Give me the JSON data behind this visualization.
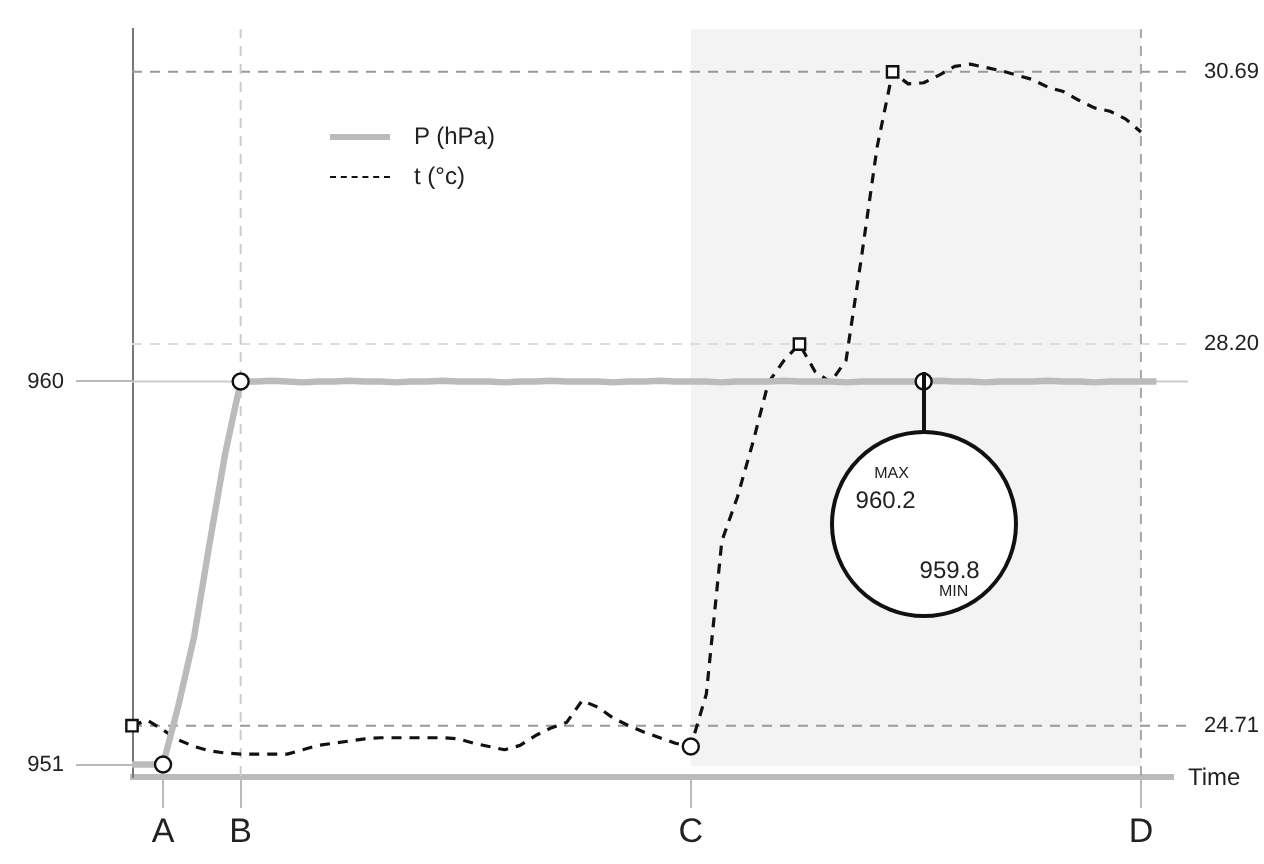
{
  "chart_data": {
    "type": "line",
    "xlabel": "Time",
    "legend": "top left",
    "marker": "none",
    "categories": [
      null,
      null,
      "A",
      null,
      null,
      null,
      null,
      "B",
      null,
      null,
      null,
      null,
      null,
      null,
      null,
      null,
      null,
      null,
      null,
      null,
      null,
      null,
      null,
      null,
      null,
      null,
      null,
      null,
      null,
      null,
      null,
      null,
      null,
      null,
      null,
      null,
      "C",
      null,
      null,
      null,
      null,
      null,
      null,
      null,
      null,
      null,
      null,
      null,
      null,
      null,
      null,
      null,
      null,
      null,
      null,
      null,
      null,
      null,
      null,
      null,
      null,
      null,
      null,
      null,
      null,
      "D",
      null,
      null
    ],
    "ylim": [
      950.73,
      968.28
    ],
    "yticks": [
      951,
      960
    ],
    "y2lim": [
      24.25,
      31.08
    ],
    "y2ticks": [
      24.71,
      {
        "value": 28.2,
        "label": "28.20"
      },
      30.69
    ],
    "series": [
      {
        "name": "P (hPa)",
        "color": "#bbbbbb",
        "line_style": "solid",
        "values": [
          951,
          951,
          951,
          952.4,
          954.0,
          956.2,
          958.3,
          960,
          960,
          960.02,
          960,
          959.98,
          960,
          960,
          960.02,
          960,
          960,
          959.98,
          960,
          960,
          960.02,
          960,
          960,
          960,
          959.98,
          960,
          960,
          960.02,
          960,
          960,
          960,
          959.98,
          960,
          960,
          960.02,
          960,
          960,
          960,
          959.98,
          960,
          960,
          960,
          960.02,
          960,
          960,
          960,
          959.98,
          960,
          960,
          960,
          960,
          960,
          960.02,
          960,
          960,
          959.98,
          960,
          960,
          960,
          960.02,
          960,
          960,
          959.98,
          960,
          960,
          960,
          960,
          null
        ]
      },
      {
        "name": "t (°c)",
        "axis": "y2",
        "color": "#111111",
        "line_style": "dashed",
        "values": [
          24.71,
          24.76,
          24.67,
          24.58,
          24.52,
          24.48,
          24.46,
          24.45,
          24.45,
          24.45,
          24.45,
          24.49,
          24.53,
          24.55,
          24.57,
          24.59,
          24.6,
          24.6,
          24.6,
          24.6,
          24.6,
          24.59,
          24.55,
          24.52,
          24.49,
          24.53,
          24.62,
          24.69,
          24.74,
          24.94,
          24.88,
          24.78,
          24.71,
          24.65,
          24.6,
          24.55,
          24.52,
          25.0,
          26.4,
          26.8,
          27.3,
          27.85,
          28.05,
          28.2,
          27.95,
          27.85,
          28.05,
          29.0,
          30.0,
          30.69,
          30.58,
          30.59,
          30.66,
          30.74,
          30.76,
          30.73,
          30.7,
          30.66,
          30.62,
          30.55,
          30.51,
          30.43,
          30.36,
          30.33,
          30.26,
          30.14,
          null,
          null
        ]
      },
      {
        "type": "scatter",
        "marker": "square",
        "axis": "y2",
        "color": "#111111",
        "values": [
          24.71,
          null,
          null,
          null,
          null,
          null,
          null,
          null,
          null,
          null,
          null,
          null,
          null,
          null,
          null,
          null,
          null,
          null,
          null,
          null,
          null,
          null,
          null,
          null,
          null,
          null,
          null,
          null,
          null,
          null,
          null,
          null,
          null,
          null,
          null,
          null,
          null,
          null,
          null,
          null,
          null,
          null,
          null,
          28.2,
          null,
          null,
          null,
          null,
          null,
          30.69,
          null,
          null,
          null,
          null,
          null,
          null,
          null,
          null,
          null,
          null,
          null,
          null,
          null,
          null,
          null,
          null,
          null,
          null
        ]
      },
      {
        "type": "scatter",
        "marker": "circle",
        "axis": "y2",
        "color": "#111111",
        "values": [
          null,
          null,
          null,
          null,
          null,
          null,
          null,
          null,
          null,
          null,
          null,
          null,
          null,
          null,
          null,
          null,
          null,
          null,
          null,
          null,
          null,
          null,
          null,
          null,
          null,
          null,
          null,
          null,
          null,
          null,
          null,
          null,
          null,
          null,
          null,
          null,
          24.52,
          null,
          null,
          null,
          null,
          null,
          null,
          null,
          null,
          null,
          null,
          null,
          null,
          null,
          null,
          null,
          null,
          null,
          null,
          null,
          null,
          null,
          null,
          null,
          null,
          null,
          null,
          null,
          null,
          null,
          null,
          null
        ]
      },
      {
        "type": "scatter",
        "marker": "circle",
        "color": "#111111",
        "values": [
          null,
          null,
          951,
          null,
          null,
          null,
          null,
          960,
          null,
          null,
          null,
          null,
          null,
          null,
          null,
          null,
          null,
          null,
          null,
          null,
          null,
          null,
          null,
          null,
          null,
          null,
          null,
          null,
          null,
          null,
          null,
          null,
          null,
          null,
          null,
          null,
          null,
          null,
          null,
          null,
          null,
          null,
          null,
          null,
          null,
          null,
          null,
          null,
          null,
          null,
          null,
          960,
          null,
          null,
          null,
          null,
          null,
          null,
          null,
          null,
          null,
          null,
          null,
          null,
          null,
          null,
          null,
          null
        ]
      }
    ],
    "ref_lines": [
      {
        "axis": "y",
        "value": 960,
        "color": "#cccccc",
        "line_style": "solid"
      },
      {
        "axis": "y2",
        "value": 24.71,
        "color": "#999999",
        "line_style": "dashed"
      },
      {
        "axis": "y2",
        "value": 28.2,
        "color": "#dddddd",
        "line_style": "dashed"
      },
      {
        "axis": "y2",
        "value": 30.69,
        "color": "#999999",
        "line_style": "dashed"
      },
      {
        "axis": "x",
        "value": "B",
        "color": "#cccccc",
        "line_style": "dashed"
      },
      {
        "axis": "x",
        "value": "D",
        "color": "#aaaaaa",
        "line_style": "dashed"
      }
    ],
    "bands": [
      {
        "axis": "x",
        "from": "C",
        "to": "D",
        "color": "#f3f3f3"
      }
    ],
    "annotations": [
      "MAX",
      "960.2",
      "959.8",
      "MIN"
    ]
  }
}
